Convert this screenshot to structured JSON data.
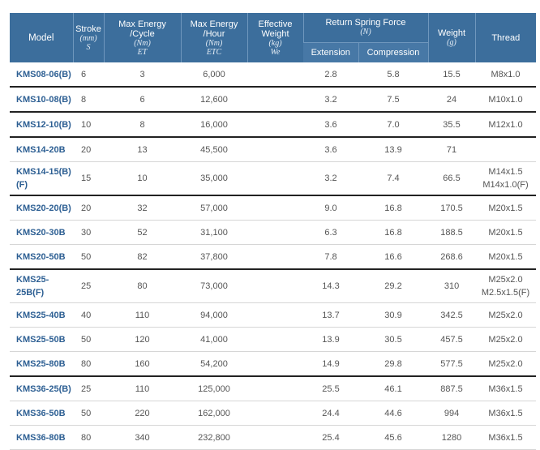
{
  "headers": {
    "model": "Model",
    "stroke": "Stroke",
    "stroke_unit": "(mm)",
    "stroke_sym": "S",
    "max_cycle": "Max Energy /Cycle",
    "max_cycle_unit": "(Nm)",
    "max_cycle_sym": "ET",
    "max_hour": "Max Energy /Hour",
    "max_hour_unit": "(Nm)",
    "max_hour_sym": "ETC",
    "eff_weight": "Effective Weight",
    "eff_weight_unit": "(kg)",
    "eff_weight_sym": "We",
    "spring": "Return Spring Force",
    "spring_unit": "(N)",
    "extension": "Extension",
    "compression": "Compression",
    "weight": "Weight",
    "weight_unit": "(g)",
    "thread": "Thread"
  },
  "rows": [
    {
      "model": "KMS08-06(B)",
      "stroke": "6",
      "cycle": "3",
      "hour": "6,000",
      "eff": "",
      "ext": "2.8",
      "comp": "5.8",
      "weight": "15.5",
      "thread": [
        "M8x1.0"
      ]
    },
    {
      "model": "KMS10-08(B)",
      "stroke": "8",
      "cycle": "6",
      "hour": "12,600",
      "eff": "",
      "ext": "3.2",
      "comp": "7.5",
      "weight": "24",
      "thread": [
        "M10x1.0"
      ]
    },
    {
      "model": "KMS12-10(B)",
      "stroke": "10",
      "cycle": "8",
      "hour": "16,000",
      "eff": "",
      "ext": "3.6",
      "comp": "7.0",
      "weight": "35.5",
      "thread": [
        "M12x1.0"
      ]
    },
    {
      "model": "KMS14-20B",
      "stroke": "20",
      "cycle": "13",
      "hour": "45,500",
      "eff": "",
      "ext": "3.6",
      "comp": "13.9",
      "weight": "71",
      "thread": [
        ""
      ]
    },
    {
      "model": "KMS14-15(B)(F)",
      "stroke": "15",
      "cycle": "10",
      "hour": "35,000",
      "eff": "",
      "ext": "3.2",
      "comp": "7.4",
      "weight": "66.5",
      "thread": [
        "M14x1.5",
        "M14x1.0(F)"
      ]
    },
    {
      "model": "KMS20-20(B)",
      "stroke": "20",
      "cycle": "32",
      "hour": "57,000",
      "eff": "",
      "ext": "9.0",
      "comp": "16.8",
      "weight": "170.5",
      "thread": [
        "M20x1.5"
      ]
    },
    {
      "model": "KMS20-30B",
      "stroke": "30",
      "cycle": "52",
      "hour": "31,100",
      "eff": "",
      "ext": "6.3",
      "comp": "16.8",
      "weight": "188.5",
      "thread": [
        "M20x1.5"
      ]
    },
    {
      "model": "KMS20-50B",
      "stroke": "50",
      "cycle": "82",
      "hour": "37,800",
      "eff": "",
      "ext": "7.8",
      "comp": "16.6",
      "weight": "268.6",
      "thread": [
        "M20x1.5"
      ]
    },
    {
      "model": "KMS25-25B(F)",
      "stroke": "25",
      "cycle": "80",
      "hour": "73,000",
      "eff": "",
      "ext": "14.3",
      "comp": "29.2",
      "weight": "310",
      "thread": [
        "M25x2.0",
        "M2.5x1.5(F)"
      ]
    },
    {
      "model": "KMS25-40B",
      "stroke": "40",
      "cycle": "110",
      "hour": "94,000",
      "eff": "",
      "ext": "13.7",
      "comp": "30.9",
      "weight": "342.5",
      "thread": [
        "M25x2.0"
      ]
    },
    {
      "model": "KMS25-50B",
      "stroke": "50",
      "cycle": "120",
      "hour": "41,000",
      "eff": "",
      "ext": "13.9",
      "comp": "30.5",
      "weight": "457.5",
      "thread": [
        "M25x2.0"
      ]
    },
    {
      "model": "KMS25-80B",
      "stroke": "80",
      "cycle": "160",
      "hour": "54,200",
      "eff": "",
      "ext": "14.9",
      "comp": "29.8",
      "weight": "577.5",
      "thread": [
        "M25x2.0"
      ]
    },
    {
      "model": "KMS36-25(B)",
      "stroke": "25",
      "cycle": "110",
      "hour": "125,000",
      "eff": "",
      "ext": "25.5",
      "comp": "46.1",
      "weight": "887.5",
      "thread": [
        "M36x1.5"
      ]
    },
    {
      "model": "KMS36-50B",
      "stroke": "50",
      "cycle": "220",
      "hour": "162,000",
      "eff": "",
      "ext": "24.4",
      "comp": "44.6",
      "weight": "994",
      "thread": [
        "M36x1.5"
      ]
    },
    {
      "model": "KMS36-80B",
      "stroke": "80",
      "cycle": "340",
      "hour": "232,800",
      "eff": "",
      "ext": "25.4",
      "comp": "45.6",
      "weight": "1280",
      "thread": [
        "M36x1.5"
      ]
    }
  ]
}
